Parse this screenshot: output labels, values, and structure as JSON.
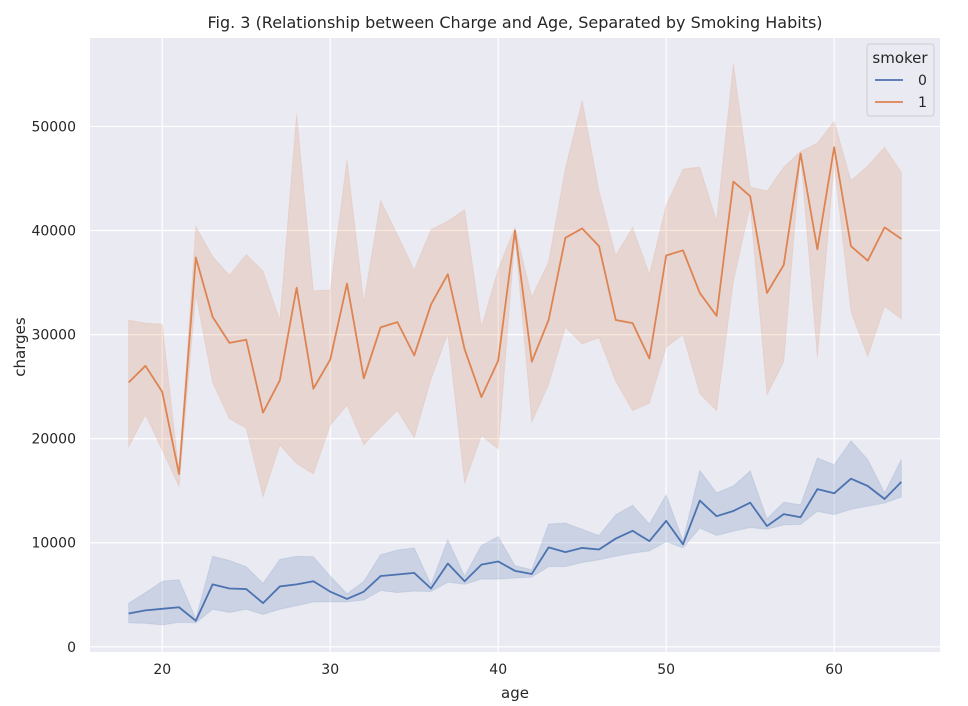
{
  "chart_data": {
    "type": "line",
    "title": "Fig. 3 (Relationship between Charge and Age, Separated by Smoking Habits)",
    "xlabel": "age",
    "ylabel": "charges",
    "xlim": [
      15.7,
      66.3
    ],
    "ylim": [
      -500,
      58500
    ],
    "xticks": [
      20,
      30,
      40,
      50,
      60
    ],
    "yticks": [
      0,
      10000,
      20000,
      30000,
      40000,
      50000
    ],
    "grid": true,
    "legend": {
      "title": "smoker",
      "placement": "top-right"
    },
    "x": [
      18,
      19,
      20,
      21,
      22,
      23,
      24,
      25,
      26,
      27,
      28,
      29,
      30,
      31,
      32,
      33,
      34,
      35,
      36,
      37,
      38,
      39,
      40,
      41,
      42,
      43,
      44,
      45,
      46,
      47,
      48,
      49,
      50,
      51,
      52,
      53,
      54,
      55,
      56,
      57,
      58,
      59,
      60,
      61,
      62,
      63,
      64
    ],
    "series": [
      {
        "name": "0",
        "color": "#4c72b0",
        "values": [
          3200,
          3500,
          3650,
          3800,
          2500,
          6000,
          5600,
          5550,
          4200,
          5800,
          6000,
          6300,
          5300,
          4600,
          5300,
          6800,
          6950,
          7100,
          5600,
          8000,
          6300,
          7900,
          8200,
          7300,
          7000,
          9550,
          9100,
          9500,
          9350,
          10400,
          11150,
          10150,
          12100,
          9850,
          14050,
          12550,
          13050,
          13850,
          11600,
          12750,
          12450,
          15150,
          14750,
          16150,
          15450,
          14200,
          15850
        ],
        "ci_upper": [
          4200,
          5200,
          6300,
          6450,
          2700,
          8700,
          8300,
          7700,
          6100,
          8400,
          8700,
          8650,
          6800,
          5100,
          6300,
          8850,
          9300,
          9500,
          6000,
          10300,
          6800,
          9750,
          10600,
          7800,
          7400,
          11800,
          11900,
          11300,
          10700,
          12700,
          13600,
          11800,
          14600,
          10200,
          16950,
          14800,
          15450,
          16900,
          12300,
          13900,
          13650,
          18150,
          17500,
          19800,
          18000,
          14800,
          18000
        ],
        "ci_lower": [
          2300,
          2250,
          2100,
          2350,
          2300,
          3600,
          3300,
          3600,
          3100,
          3600,
          3950,
          4300,
          4300,
          4300,
          4500,
          5400,
          5200,
          5350,
          5300,
          6200,
          6000,
          6500,
          6500,
          6600,
          6700,
          7700,
          7700,
          8100,
          8350,
          8700,
          9000,
          9200,
          10100,
          9500,
          11400,
          10700,
          11100,
          11450,
          11300,
          11700,
          11750,
          13000,
          12700,
          13200,
          13500,
          13800,
          14400
        ]
      },
      {
        "name": "1",
        "color": "#dd8452",
        "values": [
          25400,
          27000,
          24500,
          16600,
          37400,
          31700,
          29200,
          29500,
          22500,
          25600,
          34500,
          24800,
          27600,
          34900,
          25800,
          30700,
          31200,
          28000,
          32900,
          35800,
          28600,
          24000,
          27500,
          40000,
          27400,
          31400,
          39300,
          40200,
          38500,
          31400,
          31100,
          27700,
          37600,
          38100,
          34000,
          31800,
          44700,
          43300,
          34000,
          36700,
          47400,
          38200,
          48000,
          38500,
          37100,
          40300,
          39200
        ],
        "ci_upper": [
          31400,
          31100,
          31000,
          16700,
          40400,
          37500,
          35700,
          37700,
          36100,
          31400,
          51200,
          34200,
          34300,
          46800,
          33100,
          42900,
          39600,
          36200,
          40100,
          40900,
          42000,
          30700,
          36300,
          40300,
          33600,
          37000,
          46000,
          52500,
          43800,
          37600,
          40300,
          35800,
          42400,
          45900,
          46100,
          40900,
          56000,
          44200,
          43800,
          46100,
          47600,
          48400,
          50500,
          44800,
          46200,
          48000,
          45600
        ],
        "ci_lower": [
          19200,
          22300,
          18900,
          15400,
          33900,
          25400,
          21900,
          21000,
          14400,
          19400,
          17600,
          16600,
          21300,
          23200,
          19400,
          21100,
          22700,
          20100,
          25700,
          30100,
          15700,
          20300,
          19000,
          39400,
          21600,
          25200,
          30700,
          29100,
          29700,
          25500,
          22700,
          23400,
          28800,
          30000,
          24300,
          22700,
          35100,
          42400,
          24200,
          27400,
          47300,
          27800,
          46400,
          32200,
          27900,
          32700,
          31500
        ]
      }
    ]
  }
}
